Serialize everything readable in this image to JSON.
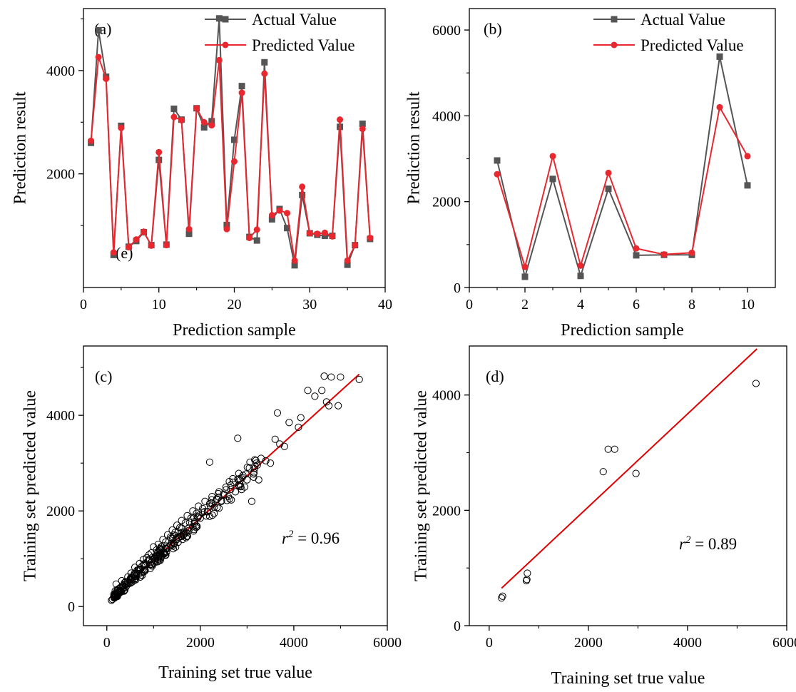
{
  "colors": {
    "actual": "#555555",
    "predicted": "#e8272f",
    "fit_line": "#e00000",
    "axis": "#000000",
    "scatter_marker": "#000000"
  },
  "chart_data": [
    {
      "id": "a",
      "type": "line",
      "panel_label": "(a)",
      "inner_label": "(e)",
      "xlabel": "Prediction sample",
      "ylabel": "Prediction result",
      "xlim": [
        0,
        40
      ],
      "ylim": [
        -200,
        5200
      ],
      "xticks": [
        0,
        10,
        20,
        30,
        40
      ],
      "yticks": [
        2000,
        4000
      ],
      "legend_position": "top-right",
      "grid": false,
      "x": [
        1,
        2,
        3,
        4,
        5,
        6,
        7,
        8,
        9,
        10,
        11,
        12,
        13,
        14,
        15,
        16,
        17,
        18,
        19,
        20,
        21,
        22,
        23,
        24,
        25,
        26,
        27,
        28,
        29,
        30,
        31,
        32,
        33,
        34,
        35,
        36,
        37,
        38
      ],
      "series": [
        {
          "name": "Actual Value",
          "marker": "square",
          "values": [
            2600,
            4780,
            3880,
            430,
            2930,
            590,
            700,
            870,
            620,
            2270,
            630,
            3260,
            3050,
            840,
            3270,
            2900,
            3020,
            5010,
            1010,
            2660,
            3700,
            780,
            710,
            4160,
            1120,
            1320,
            950,
            230,
            1590,
            850,
            820,
            800,
            800,
            2910,
            240,
            620,
            2970,
            740
          ]
        },
        {
          "name": "Predicted Value",
          "marker": "circle",
          "values": [
            2640,
            4260,
            3840,
            480,
            2890,
            580,
            730,
            880,
            610,
            2420,
            620,
            3100,
            3040,
            930,
            3270,
            3000,
            2940,
            4200,
            930,
            2240,
            3570,
            760,
            920,
            3940,
            1200,
            1290,
            1240,
            320,
            1750,
            850,
            840,
            860,
            790,
            3050,
            320,
            620,
            2870,
            760
          ]
        }
      ]
    },
    {
      "id": "b",
      "type": "line",
      "panel_label": "(b)",
      "xlabel": "Prediction sample",
      "ylabel": "Prediction result",
      "xlim": [
        0,
        11
      ],
      "ylim": [
        0,
        6500
      ],
      "xticks": [
        0,
        2,
        4,
        6,
        8,
        10
      ],
      "yticks": [
        0,
        2000,
        4000,
        6000
      ],
      "legend_position": "top-right",
      "grid": false,
      "x": [
        1,
        2,
        3,
        4,
        5,
        6,
        7,
        8,
        9,
        10
      ],
      "series": [
        {
          "name": "Actual Value",
          "marker": "square",
          "values": [
            2960,
            250,
            2530,
            270,
            2300,
            750,
            760,
            760,
            5380,
            2380
          ]
        },
        {
          "name": "Predicted Value",
          "marker": "circle",
          "values": [
            2640,
            480,
            3060,
            510,
            2670,
            910,
            770,
            810,
            4200,
            3060
          ]
        }
      ]
    },
    {
      "id": "c",
      "type": "scatter",
      "panel_label": "(c)",
      "xlabel": "Training set true value",
      "ylabel": "Training set predicted value",
      "xlim": [
        -500,
        6000
      ],
      "ylim": [
        -400,
        5450
      ],
      "xticks": [
        0,
        2000,
        4000,
        6000
      ],
      "yticks": [
        0,
        2000,
        4000
      ],
      "annotation": {
        "symbol": "r",
        "exp": "2",
        "text": " = 0.96"
      },
      "fit_line": {
        "x": [
          100,
          5400
        ],
        "y": [
          170,
          4860
        ]
      },
      "point_count": 320,
      "points": [
        [
          100,
          130
        ],
        [
          120,
          150
        ],
        [
          180,
          330
        ],
        [
          200,
          470
        ],
        [
          220,
          280
        ],
        [
          260,
          360
        ],
        [
          300,
          330
        ],
        [
          320,
          540
        ],
        [
          340,
          390
        ],
        [
          380,
          470
        ],
        [
          400,
          520
        ],
        [
          420,
          430
        ],
        [
          450,
          620
        ],
        [
          480,
          500
        ],
        [
          500,
          560
        ],
        [
          520,
          700
        ],
        [
          550,
          610
        ],
        [
          580,
          660
        ],
        [
          600,
          820
        ],
        [
          620,
          560
        ],
        [
          650,
          760
        ],
        [
          680,
          690
        ],
        [
          700,
          900
        ],
        [
          720,
          780
        ],
        [
          750,
          840
        ],
        [
          780,
          980
        ],
        [
          800,
          880
        ],
        [
          820,
          750
        ],
        [
          850,
          1020
        ],
        [
          880,
          950
        ],
        [
          900,
          1080
        ],
        [
          920,
          880
        ],
        [
          950,
          1120
        ],
        [
          980,
          1030
        ],
        [
          1000,
          1250
        ],
        [
          1030,
          960
        ],
        [
          1060,
          1180
        ],
        [
          1100,
          1300
        ],
        [
          1130,
          1100
        ],
        [
          1160,
          1250
        ],
        [
          1200,
          1400
        ],
        [
          1230,
          1130
        ],
        [
          1260,
          1350
        ],
        [
          1300,
          1500
        ],
        [
          1330,
          1260
        ],
        [
          1360,
          1450
        ],
        [
          1400,
          1600
        ],
        [
          1430,
          1320
        ],
        [
          1460,
          1550
        ],
        [
          1500,
          1700
        ],
        [
          1530,
          1450
        ],
        [
          1560,
          1650
        ],
        [
          1600,
          1800
        ],
        [
          1640,
          1560
        ],
        [
          1680,
          1750
        ],
        [
          1720,
          1900
        ],
        [
          1760,
          1650
        ],
        [
          1800,
          1850
        ],
        [
          1840,
          2000
        ],
        [
          1880,
          1780
        ],
        [
          1920,
          1950
        ],
        [
          1960,
          2100
        ],
        [
          2000,
          1850
        ],
        [
          2050,
          2050
        ],
        [
          2100,
          2200
        ],
        [
          2150,
          1980
        ],
        [
          2200,
          2150
        ],
        [
          2200,
          3020
        ],
        [
          2250,
          2300
        ],
        [
          2300,
          2080
        ],
        [
          2350,
          2250
        ],
        [
          2400,
          2400
        ],
        [
          2450,
          2200
        ],
        [
          2500,
          2350
        ],
        [
          2550,
          2500
        ],
        [
          2600,
          2300
        ],
        [
          2650,
          2450
        ],
        [
          2700,
          2600
        ],
        [
          2750,
          2400
        ],
        [
          2800,
          3520
        ],
        [
          2850,
          2550
        ],
        [
          2900,
          2700
        ],
        [
          2950,
          2500
        ],
        [
          3000,
          2650
        ],
        [
          3050,
          2900
        ],
        [
          3100,
          2200
        ],
        [
          3150,
          2800
        ],
        [
          3200,
          3000
        ],
        [
          3250,
          2650
        ],
        [
          3300,
          3100
        ],
        [
          3400,
          3050
        ],
        [
          3500,
          3000
        ],
        [
          3600,
          3500
        ],
        [
          3650,
          4050
        ],
        [
          3700,
          3400
        ],
        [
          3800,
          3350
        ],
        [
          3900,
          3850
        ],
        [
          4100,
          3750
        ],
        [
          4150,
          3950
        ],
        [
          4300,
          4520
        ],
        [
          4450,
          4400
        ],
        [
          4600,
          4520
        ],
        [
          4650,
          4820
        ],
        [
          4700,
          4280
        ],
        [
          4750,
          4200
        ],
        [
          4800,
          4800
        ],
        [
          4950,
          4200
        ],
        [
          5000,
          4800
        ],
        [
          5400,
          4750
        ]
      ]
    },
    {
      "id": "d",
      "type": "scatter",
      "panel_label": "(d)",
      "xlabel": "Training set true value",
      "ylabel": "Training set predicted value",
      "xlim": [
        -400,
        6000
      ],
      "ylim": [
        0,
        4850
      ],
      "xticks": [
        0,
        2000,
        4000,
        6000
      ],
      "yticks": [
        0,
        2000,
        4000
      ],
      "annotation": {
        "symbol": "r",
        "exp": "2",
        "text": " = 0.89"
      },
      "fit_line": {
        "x": [
          250,
          5400
        ],
        "y": [
          650,
          4800
        ]
      },
      "points": [
        [
          250,
          480
        ],
        [
          270,
          510
        ],
        [
          750,
          780
        ],
        [
          760,
          800
        ],
        [
          770,
          910
        ],
        [
          2300,
          2670
        ],
        [
          2400,
          3060
        ],
        [
          2530,
          3060
        ],
        [
          2960,
          2640
        ],
        [
          5380,
          4200
        ]
      ]
    }
  ]
}
